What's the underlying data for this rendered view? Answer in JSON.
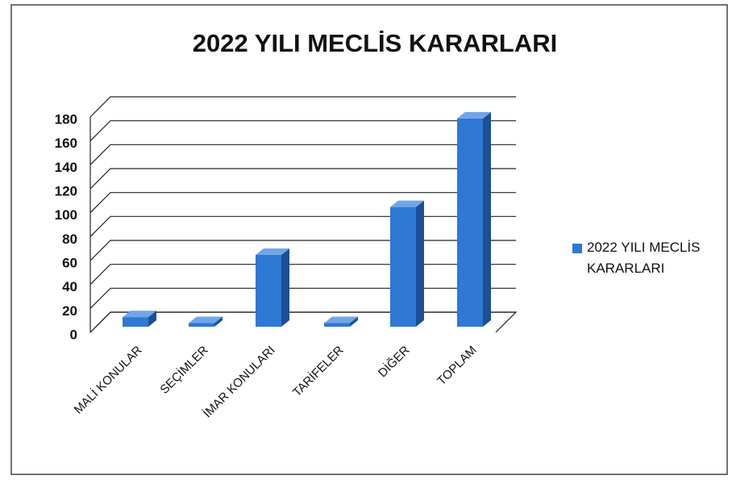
{
  "chart_data": {
    "type": "bar",
    "title": "2022 YILI MECLİS KARARLARI",
    "categories": [
      "MALİ KONULAR",
      "SEÇİMLER",
      "İMAR KONULARI",
      "TARİFELER",
      "DİĞER",
      "TOPLAM"
    ],
    "series": [
      {
        "name": "2022 YILI MECLİS KARARLARI",
        "color": "#2f78d4",
        "values": [
          8,
          3,
          60,
          3,
          100,
          174
        ]
      }
    ],
    "ylim": [
      0,
      180
    ],
    "yticks": [
      0,
      20,
      40,
      60,
      80,
      100,
      120,
      140,
      160,
      180
    ],
    "grid": true,
    "legend": "right"
  }
}
